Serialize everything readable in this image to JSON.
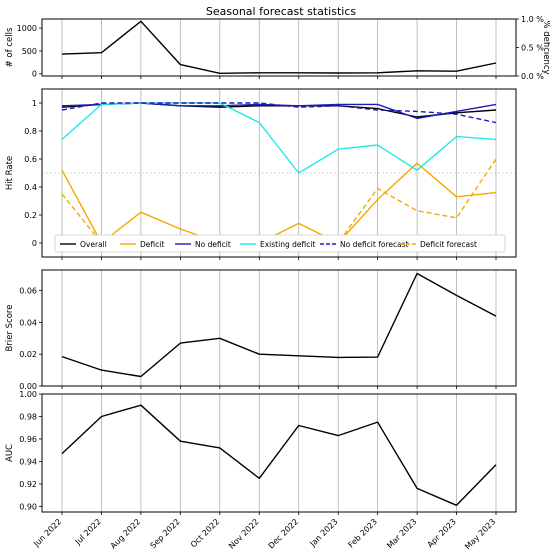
{
  "figure": {
    "title": "Seasonal forecast statistics"
  },
  "months": [
    "Jun 2022",
    "Jul 2022",
    "Aug 2022",
    "Sep 2022",
    "Oct 2022",
    "Nov 2022",
    "Dec 2022",
    "Jan 2023",
    "Feb 2023",
    "Mar 2023",
    "Apr 2023",
    "May 2023"
  ],
  "chart_data": [
    {
      "type": "line",
      "ylabel": "# of cells",
      "ylabel_right": "% deficiency",
      "ylim": [
        -50,
        1200
      ],
      "yticks": [
        0,
        500,
        1000
      ],
      "ylim_right": [
        0,
        1.0
      ],
      "yticks_right": [
        0.0,
        0.5,
        1.0
      ],
      "yticklabels_right": [
        "0.0 %",
        "0.5 %",
        "1.0 %"
      ],
      "grid_x": true,
      "series": [
        {
          "color": "#000000",
          "dash": "solid",
          "values": [
            430,
            460,
            1150,
            200,
            10,
            20,
            20,
            15,
            20,
            65,
            55,
            235
          ]
        }
      ]
    },
    {
      "type": "line",
      "ylabel": "Hit Rate",
      "ylim": [
        -0.1,
        1.1
      ],
      "yticks": [
        0.0,
        0.2,
        0.4,
        0.6,
        0.8,
        1.0
      ],
      "ref_line": 0.5,
      "grid_x": true,
      "legend_position": "bottom",
      "series": [
        {
          "name": "Overall",
          "color": "#000000",
          "dash": "solid",
          "values": [
            0.97,
            0.99,
            1.0,
            0.98,
            0.97,
            0.98,
            0.98,
            0.98,
            0.96,
            0.9,
            0.93,
            0.95
          ]
        },
        {
          "name": "Deficit",
          "color": "#f5a800",
          "dash": "solid",
          "values": [
            0.52,
            0.0,
            0.22,
            0.1,
            0.0,
            0.0,
            0.14,
            0.0,
            0.31,
            0.57,
            0.33,
            0.36
          ]
        },
        {
          "name": "No deficit",
          "color": "#1c1cb8",
          "dash": "solid",
          "values": [
            0.98,
            0.99,
            1.0,
            0.98,
            0.98,
            0.99,
            0.98,
            0.99,
            0.99,
            0.89,
            0.94,
            0.99
          ]
        },
        {
          "name": "Existing deficit",
          "color": "#20e8e8",
          "dash": "solid",
          "values": [
            0.74,
            0.99,
            1.0,
            1.0,
            1.0,
            0.86,
            0.5,
            0.67,
            0.7,
            0.52,
            0.76,
            0.74
          ]
        },
        {
          "name": "No deficit forecast",
          "color": "#1c1cb8",
          "dash": "dashed",
          "values": [
            0.95,
            1.0,
            1.0,
            1.0,
            1.0,
            1.0,
            0.97,
            0.98,
            0.95,
            0.94,
            0.92,
            0.86
          ]
        },
        {
          "name": "Deficit forecast",
          "color": "#f5a800",
          "dash": "dashed",
          "values": [
            0.35,
            0.0,
            0.05,
            0.0,
            0.0,
            0.0,
            0.04,
            0.0,
            0.39,
            0.23,
            0.18,
            0.6
          ]
        }
      ]
    },
    {
      "type": "line",
      "ylabel": "Brier Score",
      "ylim": [
        0.0,
        0.073
      ],
      "yticks": [
        0.0,
        0.02,
        0.04,
        0.06
      ],
      "yticklabels": [
        "0.00",
        "0.02",
        "0.04",
        "0.06"
      ],
      "grid_x": true,
      "series": [
        {
          "color": "#000000",
          "dash": "solid",
          "values": [
            0.0185,
            0.01,
            0.006,
            0.027,
            0.03,
            0.02,
            0.019,
            0.018,
            0.0182,
            0.0708,
            0.057,
            0.044
          ]
        }
      ]
    },
    {
      "type": "line",
      "ylabel": "AUC",
      "ylim": [
        0.895,
        1.0
      ],
      "yticks": [
        0.9,
        0.92,
        0.94,
        0.96,
        0.98,
        1.0
      ],
      "yticklabels": [
        "0.90",
        "0.92",
        "0.94",
        "0.96",
        "0.98",
        "1.00"
      ],
      "grid_x": true,
      "series": [
        {
          "color": "#000000",
          "dash": "solid",
          "values": [
            0.947,
            0.98,
            0.99,
            0.958,
            0.952,
            0.925,
            0.972,
            0.963,
            0.975,
            0.916,
            0.901,
            0.937
          ]
        }
      ]
    }
  ]
}
